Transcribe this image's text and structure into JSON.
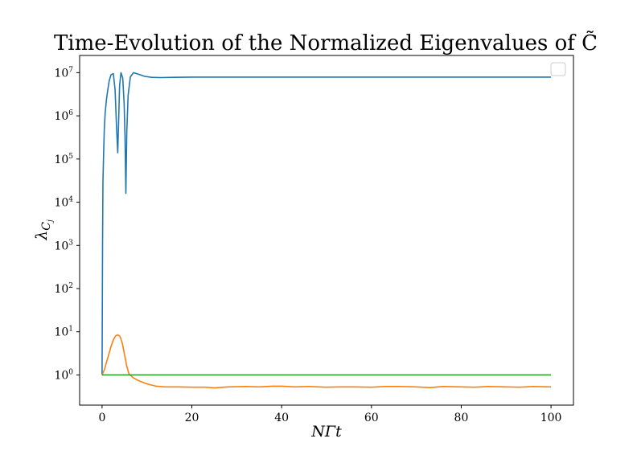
{
  "chart_data": {
    "type": "line",
    "title": "Time-Evolution of the Normalized Eigenvalues of C̃",
    "xlabel": "NΓt",
    "ylabel": "λ_{C_j}",
    "ylabel_main": "λ",
    "ylabel_sub": "C",
    "ylabel_subsub": "j",
    "xscale": "linear",
    "yscale": "log",
    "xlim": [
      -5,
      105
    ],
    "ylim": [
      0.2,
      25000000
    ],
    "x_ticks": [
      {
        "value": 0,
        "label": "0"
      },
      {
        "value": 20,
        "label": "20"
      },
      {
        "value": 40,
        "label": "40"
      },
      {
        "value": 60,
        "label": "60"
      },
      {
        "value": 80,
        "label": "80"
      },
      {
        "value": 100,
        "label": "100"
      }
    ],
    "y_ticks": [
      {
        "value": 1,
        "base": "10",
        "exp": "0"
      },
      {
        "value": 10,
        "base": "10",
        "exp": "1"
      },
      {
        "value": 100,
        "base": "10",
        "exp": "2"
      },
      {
        "value": 1000,
        "base": "10",
        "exp": "3"
      },
      {
        "value": 10000,
        "base": "10",
        "exp": "4"
      },
      {
        "value": 100000,
        "base": "10",
        "exp": "5"
      },
      {
        "value": 1000000,
        "base": "10",
        "exp": "6"
      },
      {
        "value": 10000000,
        "base": "10",
        "exp": "7"
      }
    ],
    "grid": false,
    "legend": {
      "placement": "top-right",
      "entries": []
    },
    "series": [
      {
        "color": "#1f77b4",
        "x": [
          0,
          0.1,
          0.2,
          0.35,
          0.5,
          0.7,
          1.0,
          1.3,
          1.6,
          2.0,
          2.5,
          2.9,
          3.2,
          3.5,
          3.7,
          3.9,
          4.2,
          4.6,
          4.9,
          5.1,
          5.3,
          5.5,
          5.8,
          6.3,
          7.0,
          8.0,
          9.5,
          11.0,
          13.0,
          16.0,
          20.0,
          30.0,
          50.0,
          70.0,
          100.0
        ],
        "y": [
          1,
          1000,
          30000,
          150000,
          500000,
          1200000,
          2500000,
          4200000,
          6500000,
          9000000,
          9500000,
          4000000,
          600000,
          140000,
          900000,
          5000000,
          10000000,
          7500000,
          2000000,
          350000,
          16000,
          400000,
          3000000,
          8000000,
          10000000,
          9300000,
          8200000,
          7800000,
          7700000,
          7800000,
          7900000,
          7900000,
          7900000,
          7900000,
          7900000
        ]
      },
      {
        "color": "#ff7f0e",
        "x": [
          0,
          0.5,
          1.0,
          1.5,
          2.0,
          2.5,
          3.0,
          3.5,
          4.0,
          4.5,
          5.0,
          5.5,
          6.0,
          7.0,
          8.0,
          10.0,
          12.0,
          14.0,
          17.0,
          20.0,
          23.0,
          25.0,
          28.0,
          32.0,
          35.0,
          38.0,
          40.0,
          43.0,
          46.0,
          50.0,
          53.0,
          56.0,
          60.0,
          63.0,
          66.0,
          70.0,
          73.0,
          76.0,
          80.0,
          83.0,
          86.0,
          90.0,
          93.0,
          96.0,
          100.0
        ],
        "y": [
          1.0,
          1.3,
          2.0,
          3.0,
          4.6,
          6.5,
          8.0,
          8.5,
          7.8,
          5.5,
          3.0,
          1.6,
          1.05,
          0.85,
          0.75,
          0.62,
          0.55,
          0.53,
          0.53,
          0.52,
          0.52,
          0.5,
          0.53,
          0.54,
          0.53,
          0.55,
          0.55,
          0.53,
          0.54,
          0.52,
          0.53,
          0.53,
          0.52,
          0.54,
          0.54,
          0.53,
          0.51,
          0.54,
          0.53,
          0.52,
          0.54,
          0.53,
          0.52,
          0.54,
          0.53
        ]
      },
      {
        "color": "#2ca02c",
        "x": [
          0,
          100
        ],
        "y": [
          1,
          1
        ]
      }
    ]
  }
}
